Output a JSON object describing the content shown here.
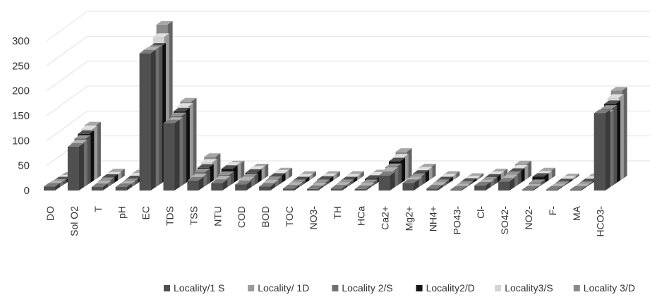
{
  "chart_data": {
    "type": "bar",
    "style": "3d-clustered",
    "grid": "horizontal",
    "legend_position": "bottom",
    "ylim": [
      0,
      300
    ],
    "yticks": [
      "0",
      "50",
      "100",
      "150",
      "200",
      "250",
      "300"
    ],
    "categories": [
      "DO",
      "Sol O2",
      "T",
      "pH",
      "EC",
      "TDS",
      "TSS",
      "NTU",
      "COD",
      "BOD",
      "TOC",
      "NO3-",
      "TH",
      "HCa",
      "Ca2+",
      "Mg2+",
      "NH4+",
      "PO43-",
      "Cl-",
      "SO42-",
      "NO2-",
      "F-",
      "MA",
      "HCO3-"
    ],
    "series": [
      {
        "name": "Locality/1 S",
        "color": "#505050",
        "values": [
          8,
          88,
          7,
          7,
          275,
          135,
          20,
          15,
          12,
          8,
          4,
          3,
          4,
          3,
          30,
          15,
          4,
          2,
          10,
          18,
          2,
          2,
          2,
          155
        ]
      },
      {
        "name": "Locality/ 1D",
        "color": "#9a9a9a",
        "values": [
          8,
          90,
          8,
          7,
          276,
          135,
          22,
          18,
          16,
          10,
          5,
          4,
          5,
          4,
          35,
          16,
          5,
          2,
          10,
          20,
          2,
          2,
          2,
          150
        ]
      },
      {
        "name": "Locality 2/S",
        "color": "#707070",
        "values": [
          7,
          95,
          10,
          8,
          275,
          140,
          28,
          22,
          18,
          12,
          6,
          6,
          6,
          6,
          38,
          18,
          6,
          3,
          11,
          22,
          6,
          2,
          2,
          155
        ]
      },
      {
        "name": "Locality2/D",
        "color": "#151515",
        "values": [
          7,
          100,
          12,
          9,
          275,
          145,
          32,
          30,
          22,
          14,
          7,
          8,
          7,
          10,
          45,
          20,
          7,
          4,
          12,
          24,
          14,
          3,
          3,
          160
        ]
      },
      {
        "name": "Locality3/S",
        "color": "#d4d4d4",
        "values": [
          6,
          105,
          12,
          10,
          290,
          150,
          38,
          32,
          24,
          16,
          8,
          9,
          8,
          12,
          48,
          22,
          8,
          4,
          13,
          26,
          14,
          4,
          4,
          168
        ]
      },
      {
        "name": "Locality 3/D",
        "color": "#8a8a8a",
        "values": [
          7,
          108,
          14,
          12,
          310,
          156,
          45,
          30,
          24,
          16,
          9,
          9,
          9,
          12,
          55,
          24,
          9,
          5,
          14,
          30,
          16,
          4,
          4,
          178
        ]
      }
    ]
  }
}
